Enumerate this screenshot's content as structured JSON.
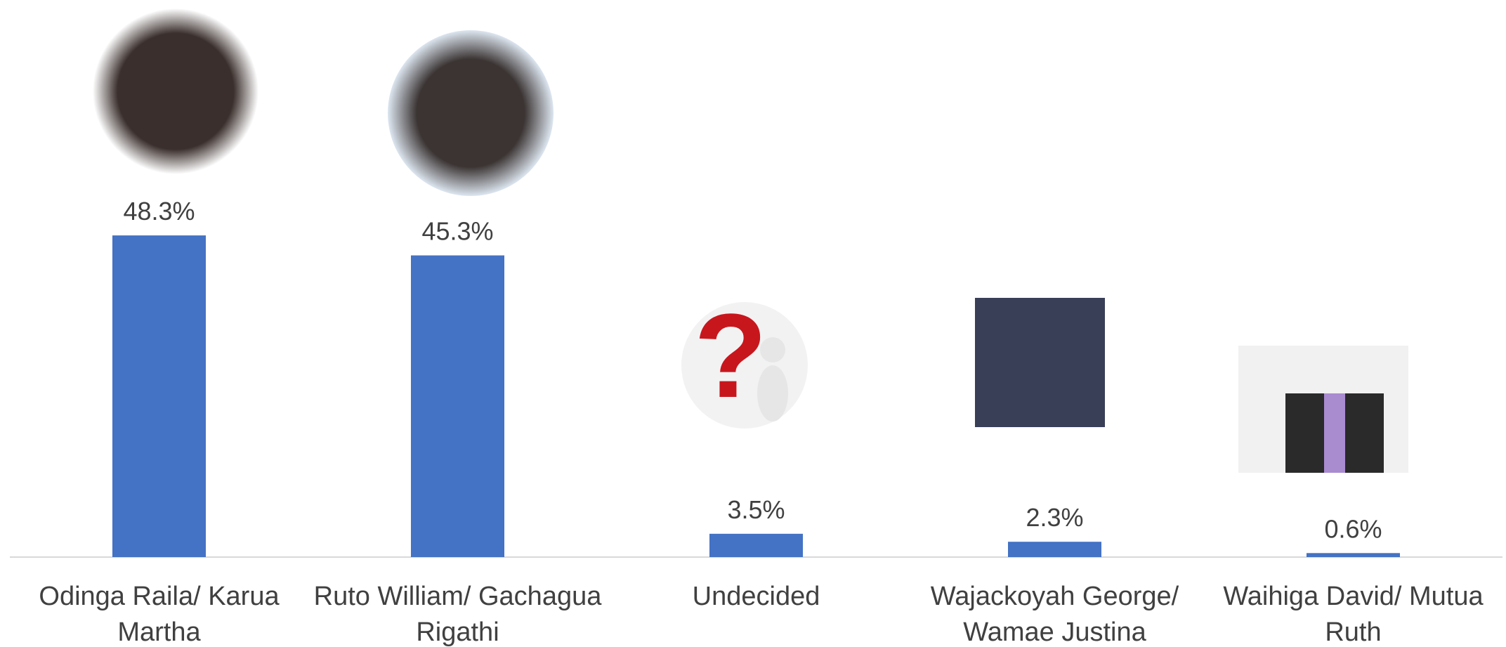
{
  "chart_data": {
    "type": "bar",
    "categories": [
      "Odinga Raila/ Karua Martha",
      "Ruto William/ Gachagua Rigathi",
      "Undecided",
      "Wajackoyah George/ Wamae Justina",
      "Waihiga David/ Mutua Ruth"
    ],
    "values": [
      48.3,
      45.3,
      3.5,
      2.3,
      0.6
    ],
    "value_labels": [
      "48.3%",
      "45.3%",
      "3.5%",
      "2.3%",
      "0.6%"
    ],
    "color": "#4472c4"
  }
}
